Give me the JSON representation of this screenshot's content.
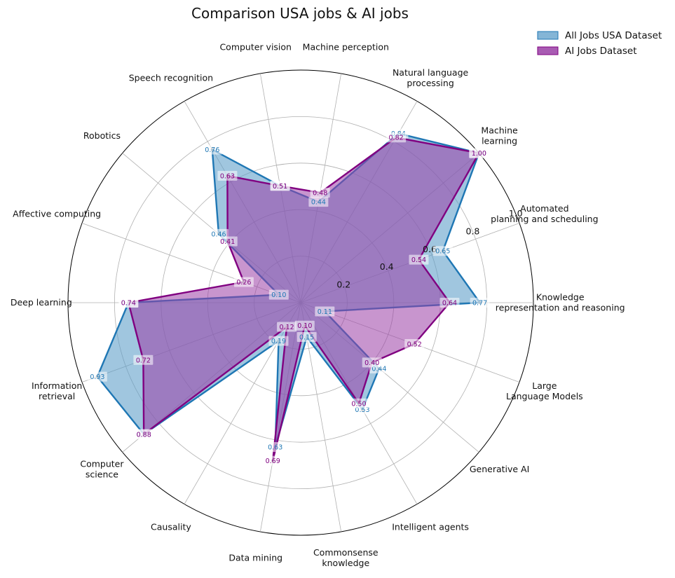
{
  "chart_data": {
    "type": "radar",
    "title": "Comparison USA jobs &  AI jobs",
    "categories": [
      "Knowledge\nrepresentation and reasoning",
      "Automated\nplanning and scheduling",
      "Machine\nlearning",
      "Natural language\nprocessing",
      "Machine perception",
      "Computer vision",
      "Speech recognition",
      "Robotics",
      "Affective computing",
      "Deep learning",
      "Information\nretrieval",
      "Computer\nscience",
      "Causality",
      "Data mining",
      "Commonsense\nknowledge",
      "Intelligent agents",
      "Generative AI",
      "Large\nLanguage Models"
    ],
    "series": [
      {
        "name": "All Jobs USA Dataset",
        "color": "#1f77b4",
        "fill": "#5b9cc8",
        "values": [
          0.77,
          0.65,
          1.0,
          0.84,
          0.44,
          0.51,
          0.76,
          0.46,
          0.1,
          0.74,
          0.93,
          0.88,
          0.19,
          0.63,
          0.15,
          0.53,
          0.44,
          0.11
        ]
      },
      {
        "name": "AI Jobs Dataset",
        "color": "#800080",
        "fill": "#9a3ea6",
        "values": [
          0.64,
          0.54,
          1.0,
          0.82,
          0.48,
          0.51,
          0.63,
          0.41,
          0.26,
          0.74,
          0.72,
          0.88,
          0.12,
          0.69,
          0.1,
          0.5,
          0.4,
          0.52
        ]
      }
    ],
    "value_labels": {
      "All Jobs USA Dataset": [
        "0.77",
        "0.65",
        "1.00",
        "0.84",
        "0.44",
        "0.51",
        "0.76",
        "0.46",
        "0.10",
        "0.74",
        "0.93",
        "0.88",
        "0.19",
        "0.63",
        "0.15",
        "0.53",
        "0.44",
        "0.11"
      ],
      "AI Jobs Dataset": [
        "0.64",
        "0.54",
        "1.00",
        "0.82",
        "0.48",
        "0.51",
        "0.63",
        "0.41",
        "0.26",
        "0.74",
        "0.72",
        "0.88",
        "0.12",
        "0.69",
        "0.10",
        "0.50",
        "0.40",
        "0.52"
      ]
    },
    "rticks": [
      0.2,
      0.4,
      0.6,
      0.8,
      1.0
    ],
    "rtick_labels": [
      "0.2",
      "0.4",
      "0.6",
      "0.8",
      "1.0"
    ],
    "rlim": [
      0,
      1.0
    ],
    "grid": true,
    "legend_position": "top-right"
  }
}
